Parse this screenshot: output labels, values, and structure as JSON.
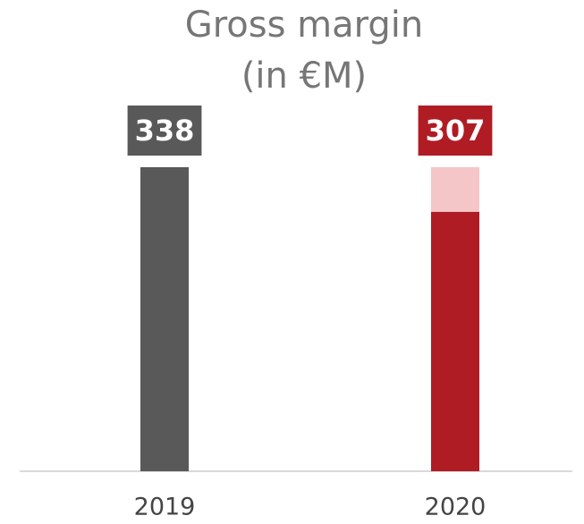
{
  "chart_data": {
    "type": "bar",
    "title": "Gross margin",
    "subtitle": "(in €M)",
    "categories": [
      "2019",
      "2020"
    ],
    "values": [
      338,
      307
    ],
    "colors": [
      "#595959",
      "#b01c24"
    ],
    "gap_color": "#f5c6c8",
    "ylim": [
      127,
      338
    ]
  }
}
